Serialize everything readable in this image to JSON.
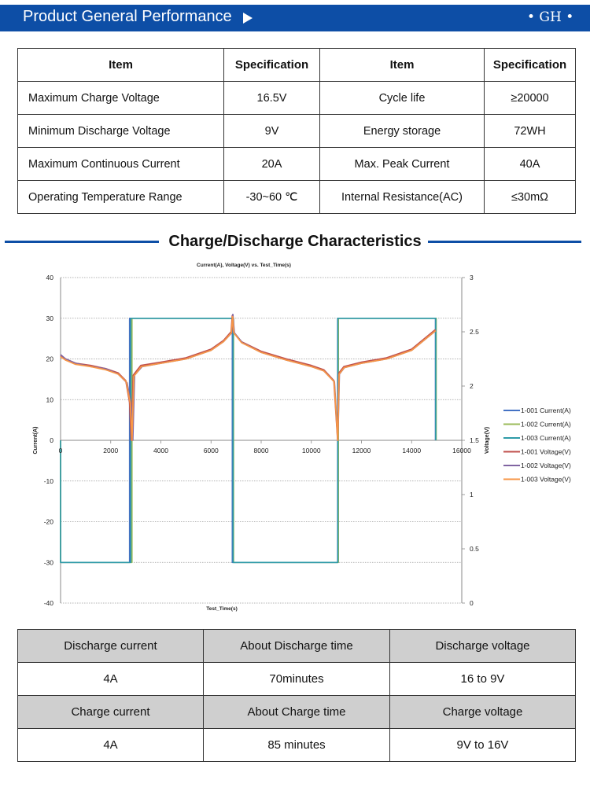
{
  "header": {
    "title": "Product General Performance",
    "brand": "• GH •"
  },
  "spec_table": {
    "headers": [
      "Item",
      "Specification",
      "Item",
      "Specification"
    ],
    "rows": [
      [
        "Maximum Charge Voltage",
        "16.5V",
        "Cycle life",
        "≥20000"
      ],
      [
        "Minimum Discharge Voltage",
        "9V",
        "Energy storage",
        "72WH"
      ],
      [
        "Maximum Continuous Current",
        "20A",
        "Max. Peak Current",
        "40A"
      ],
      [
        "Operating Temperature Range",
        "-30~60 ℃",
        "Internal Resistance(AC)",
        "≤30mΩ"
      ]
    ]
  },
  "section": {
    "title": "Charge/Discharge Characteristics"
  },
  "chart_data": {
    "type": "line",
    "title": "Current(A), Voltage(V) vs. Test_Time(s)",
    "xlabel": "Test_Time(s)",
    "ylabel": "Current(A)",
    "y2label": "Voltage(V)",
    "xlim": [
      0,
      16000
    ],
    "ylim": [
      -40,
      40
    ],
    "y2lim": [
      0,
      3
    ],
    "x_ticks": [
      "0",
      "2000",
      "4000",
      "6000",
      "8000",
      "10000",
      "12000",
      "14000",
      "16000"
    ],
    "y_ticks": [
      "40",
      "30",
      "20",
      "10",
      "0",
      "-10",
      "-20",
      "-30",
      "-40"
    ],
    "y2_ticks": [
      "3",
      "2.5",
      "2",
      "1.5",
      "1",
      "0.5",
      "0"
    ],
    "grid": true,
    "legend_position": "right",
    "series": [
      {
        "name": "1-001 Current(A)",
        "color": "#4472c4",
        "axis": "left",
        "x": [
          0,
          0,
          2750,
          2750,
          6850,
          6850,
          11050,
          11050,
          14950,
          14950
        ],
        "y": [
          0,
          -30,
          -30,
          30,
          30,
          -30,
          -30,
          30,
          30,
          0
        ]
      },
      {
        "name": "1-002 Current(A)",
        "color": "#9bbb59",
        "axis": "left",
        "x": [
          0,
          0,
          2850,
          2850,
          6900,
          6900,
          11080,
          11080,
          14980,
          14980
        ],
        "y": [
          0,
          -30,
          -30,
          30,
          30,
          -30,
          -30,
          30,
          30,
          0
        ]
      },
      {
        "name": "1-003 Current(A)",
        "color": "#2f9ba8",
        "axis": "left",
        "x": [
          0,
          0,
          2800,
          2800,
          6880,
          6880,
          11060,
          11060,
          14960,
          14960
        ],
        "y": [
          0,
          -30,
          -30,
          30,
          30,
          -30,
          -30,
          30,
          30,
          0
        ]
      },
      {
        "name": "1-001 Voltage(V)",
        "color": "#c0504d",
        "axis": "right",
        "x": [
          0,
          200,
          600,
          1200,
          1800,
          2300,
          2600,
          2750,
          2820,
          2900,
          3200,
          4000,
          5000,
          6000,
          6500,
          6800,
          6850,
          6900,
          7200,
          8000,
          9000,
          10000,
          10500,
          10900,
          11050,
          11100,
          11300,
          12000,
          13000,
          14000,
          14950
        ],
        "y": [
          2.28,
          2.24,
          2.21,
          2.19,
          2.16,
          2.12,
          2.05,
          1.85,
          1.5,
          2.1,
          2.19,
          2.22,
          2.26,
          2.34,
          2.42,
          2.5,
          2.65,
          2.5,
          2.41,
          2.32,
          2.25,
          2.19,
          2.15,
          2.05,
          1.5,
          2.12,
          2.18,
          2.22,
          2.26,
          2.34,
          2.52
        ]
      },
      {
        "name": "1-002 Voltage(V)",
        "color": "#8064a2",
        "axis": "right",
        "x": [
          0,
          200,
          600,
          1200,
          1800,
          2300,
          2650,
          2820,
          2880,
          2950,
          3250,
          4000,
          5000,
          6000,
          6500,
          6820,
          6870,
          6930,
          7250,
          8000,
          9000,
          10000,
          10500,
          10920,
          11060,
          11120,
          11320,
          12000,
          13000,
          14000,
          14960
        ],
        "y": [
          2.29,
          2.25,
          2.21,
          2.18,
          2.16,
          2.11,
          2.03,
          1.82,
          1.5,
          2.1,
          2.18,
          2.21,
          2.25,
          2.33,
          2.41,
          2.49,
          2.66,
          2.49,
          2.4,
          2.31,
          2.24,
          2.18,
          2.14,
          2.04,
          1.5,
          2.11,
          2.17,
          2.21,
          2.25,
          2.33,
          2.51
        ]
      },
      {
        "name": "1-003 Voltage(V)",
        "color": "#f79646",
        "axis": "right",
        "x": [
          0,
          200,
          600,
          1200,
          1800,
          2300,
          2620,
          2780,
          2850,
          2920,
          3220,
          4000,
          5000,
          6000,
          6500,
          6810,
          6860,
          6910,
          7220,
          8000,
          9000,
          10000,
          10500,
          10910,
          11055,
          11110,
          11310,
          12000,
          13000,
          14000,
          14955
        ],
        "y": [
          2.27,
          2.24,
          2.2,
          2.18,
          2.15,
          2.11,
          2.04,
          1.84,
          1.5,
          2.09,
          2.18,
          2.21,
          2.25,
          2.33,
          2.41,
          2.49,
          2.64,
          2.49,
          2.4,
          2.31,
          2.24,
          2.18,
          2.14,
          2.04,
          1.5,
          2.11,
          2.17,
          2.21,
          2.25,
          2.33,
          2.51
        ]
      }
    ]
  },
  "cycle_table": {
    "discharge_headers": [
      "Discharge current",
      "About Discharge time",
      "Discharge voltage"
    ],
    "discharge_values": [
      "4A",
      "70minutes",
      "16 to 9V"
    ],
    "charge_headers": [
      "Charge current",
      "About Charge time",
      "Charge voltage"
    ],
    "charge_values": [
      "4A",
      "85 minutes",
      "9V to 16V"
    ]
  }
}
